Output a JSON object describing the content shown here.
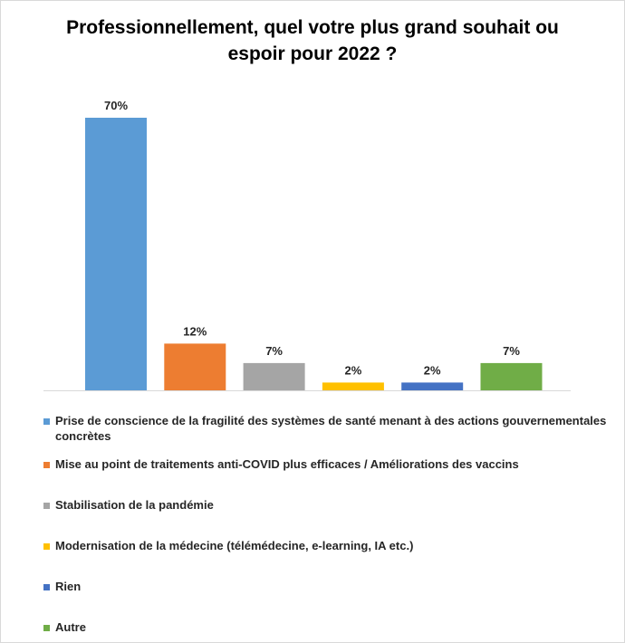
{
  "chart_data": {
    "type": "bar",
    "title": "Professionnellement, quel votre plus grand souhait ou espoir pour 2022 ?",
    "categories": [
      "Prise de conscience de la fragilité des systèmes de santé menant à des actions gouvernementales concrètes",
      "Mise au point de traitements anti-COVID plus efficaces / Améliorations des vaccins",
      "Stabilisation de la pandémie",
      "Modernisation de la médecine (télémédecine, e-learning, IA etc.)",
      "Rien",
      "Autre"
    ],
    "values": [
      70,
      12,
      7,
      2,
      2,
      7
    ],
    "value_labels": [
      "70%",
      "12%",
      "7%",
      "2%",
      "2%",
      "7%"
    ],
    "colors": [
      "#5b9bd5",
      "#ed7d31",
      "#a5a5a5",
      "#ffc000",
      "#4472c4",
      "#70ad47"
    ],
    "ylim": [
      0,
      70
    ],
    "gridlines": false,
    "y_axis_visible": false,
    "legend_position": "bottom",
    "xlabel": "",
    "ylabel": ""
  }
}
